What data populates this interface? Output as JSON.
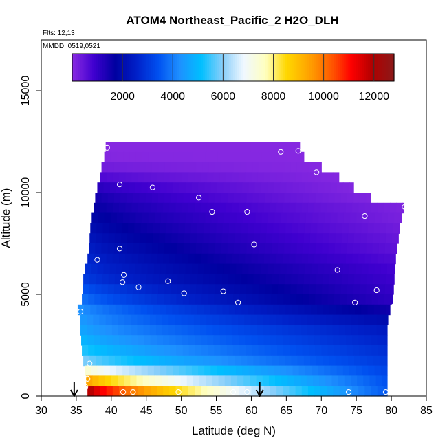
{
  "chart_data": {
    "type": "heatmap",
    "title": "ATOM4 Northeast_Pacific_2 H2O_DLH",
    "flights_label": "Flts: 12,13",
    "dates_label": "MMDD: 0519,0521",
    "xlabel": "Latitude (deg N)",
    "ylabel": "Altitude (m)",
    "xlim": [
      30,
      85
    ],
    "ylim": [
      0,
      17500
    ],
    "xticks": [
      30,
      35,
      40,
      45,
      50,
      55,
      60,
      65,
      70,
      75,
      80,
      85
    ],
    "yticks": [
      0,
      5000,
      10000,
      15000
    ],
    "colorbar": {
      "min": 0,
      "max": 12800,
      "ticks": [
        2000,
        4000,
        6000,
        8000,
        10000,
        12000
      ],
      "colors": [
        "#8a2be2",
        "#4000d0",
        "#0000a0",
        "#0020c8",
        "#0050f0",
        "#1e90ff",
        "#00bfff",
        "#87cefa",
        "#f0f8ff",
        "#ffffc0",
        "#ffd700",
        "#ffa500",
        "#ff6000",
        "#ff0000",
        "#b00000",
        "#8b1a1a"
      ]
    },
    "arrows_latitude": [
      34.7,
      61.2
    ],
    "field": [
      {
        "alt": 12250,
        "lat": [
          39.2,
          66.9
        ],
        "values": [
          50,
          50
        ]
      },
      {
        "alt": 11750,
        "lat": [
          39.0,
          67.5
        ],
        "values": [
          80,
          50
        ]
      },
      {
        "alt": 11250,
        "lat": [
          38.6,
          70.0
        ],
        "values": [
          300,
          60
        ]
      },
      {
        "alt": 10750,
        "lat": [
          38.4,
          72.5
        ],
        "values": [
          700,
          80
        ]
      },
      {
        "alt": 10250,
        "lat": [
          38.0,
          74.6
        ],
        "values": [
          1200,
          100
        ]
      },
      {
        "alt": 9750,
        "lat": [
          37.7,
          77.0
        ],
        "values": [
          1500,
          120
        ]
      },
      {
        "alt": 9250,
        "lat": [
          37.5,
          81.8
        ],
        "values": [
          1700,
          150
        ]
      },
      {
        "alt": 8750,
        "lat": [
          37.2,
          81.5
        ],
        "values": [
          1900,
          200
        ]
      },
      {
        "alt": 8250,
        "lat": [
          37.0,
          81.2
        ],
        "values": [
          2100,
          300
        ]
      },
      {
        "alt": 7750,
        "lat": [
          36.9,
          81.0
        ],
        "values": [
          2300,
          400
        ]
      },
      {
        "alt": 7250,
        "lat": [
          36.8,
          80.8
        ],
        "values": [
          2500,
          500
        ]
      },
      {
        "alt": 6750,
        "lat": [
          36.6,
          80.6
        ],
        "values": [
          2700,
          650
        ]
      },
      {
        "alt": 6250,
        "lat": [
          36.2,
          80.5
        ],
        "values": [
          2900,
          800
        ]
      },
      {
        "alt": 5750,
        "lat": [
          36.0,
          80.4
        ],
        "values": [
          3100,
          900
        ]
      },
      {
        "alt": 5250,
        "lat": [
          35.9,
          80.3
        ],
        "values": [
          3500,
          1000
        ]
      },
      {
        "alt": 4750,
        "lat": [
          35.8,
          80.2
        ],
        "values": [
          3900,
          1100
        ]
      },
      {
        "alt": 4250,
        "lat": [
          35.2,
          79.8
        ],
        "values": [
          4400,
          1500
        ]
      },
      {
        "alt": 3750,
        "lat": [
          35.6,
          79.5
        ],
        "values": [
          4500,
          2000
        ]
      },
      {
        "alt": 3250,
        "lat": [
          35.6,
          79.4
        ],
        "values": [
          4700,
          2400
        ]
      },
      {
        "alt": 2750,
        "lat": [
          35.7,
          79.4
        ],
        "values": [
          5000,
          2600
        ]
      },
      {
        "alt": 2250,
        "lat": [
          35.8,
          79.4
        ],
        "values": [
          5400,
          2800
        ]
      },
      {
        "alt": 1750,
        "lat": [
          36.0,
          79.4
        ],
        "values": [
          6000,
          3000
        ]
      },
      {
        "alt": 1250,
        "lat": [
          36.2,
          79.4
        ],
        "values": [
          7600,
          3200
        ]
      },
      {
        "alt": 750,
        "lat": [
          36.4,
          79.4
        ],
        "values": [
          9600,
          3400
        ]
      },
      {
        "alt": 250,
        "lat": [
          36.6,
          79.4
        ],
        "values": [
          12200,
          3500
        ]
      }
    ],
    "points": [
      {
        "lat": 39.4,
        "alt": 12200
      },
      {
        "lat": 64.2,
        "alt": 12000
      },
      {
        "lat": 66.7,
        "alt": 12050
      },
      {
        "lat": 69.3,
        "alt": 11000
      },
      {
        "lat": 41.2,
        "alt": 10400
      },
      {
        "lat": 45.9,
        "alt": 10250
      },
      {
        "lat": 52.5,
        "alt": 9750
      },
      {
        "lat": 54.4,
        "alt": 9050
      },
      {
        "lat": 59.4,
        "alt": 9050
      },
      {
        "lat": 76.2,
        "alt": 8850
      },
      {
        "lat": 81.9,
        "alt": 9300
      },
      {
        "lat": 41.2,
        "alt": 7250
      },
      {
        "lat": 38.0,
        "alt": 6700
      },
      {
        "lat": 60.4,
        "alt": 7450
      },
      {
        "lat": 41.8,
        "alt": 5950
      },
      {
        "lat": 41.6,
        "alt": 5600
      },
      {
        "lat": 43.9,
        "alt": 5350
      },
      {
        "lat": 48.1,
        "alt": 5650
      },
      {
        "lat": 50.4,
        "alt": 5050
      },
      {
        "lat": 56.0,
        "alt": 5150
      },
      {
        "lat": 58.1,
        "alt": 4600
      },
      {
        "lat": 72.3,
        "alt": 6200
      },
      {
        "lat": 77.9,
        "alt": 5200
      },
      {
        "lat": 74.8,
        "alt": 4600
      },
      {
        "lat": 80.3,
        "alt": 4400
      },
      {
        "lat": 35.6,
        "alt": 4150
      },
      {
        "lat": 36.9,
        "alt": 1600
      },
      {
        "lat": 36.6,
        "alt": 850
      },
      {
        "lat": 36.3,
        "alt": 450
      },
      {
        "lat": 41.7,
        "alt": 200
      },
      {
        "lat": 43.1,
        "alt": 200
      },
      {
        "lat": 49.6,
        "alt": 200
      },
      {
        "lat": 57.4,
        "alt": 200
      },
      {
        "lat": 59.4,
        "alt": 200
      },
      {
        "lat": 73.9,
        "alt": 200
      },
      {
        "lat": 79.2,
        "alt": 200
      }
    ]
  }
}
